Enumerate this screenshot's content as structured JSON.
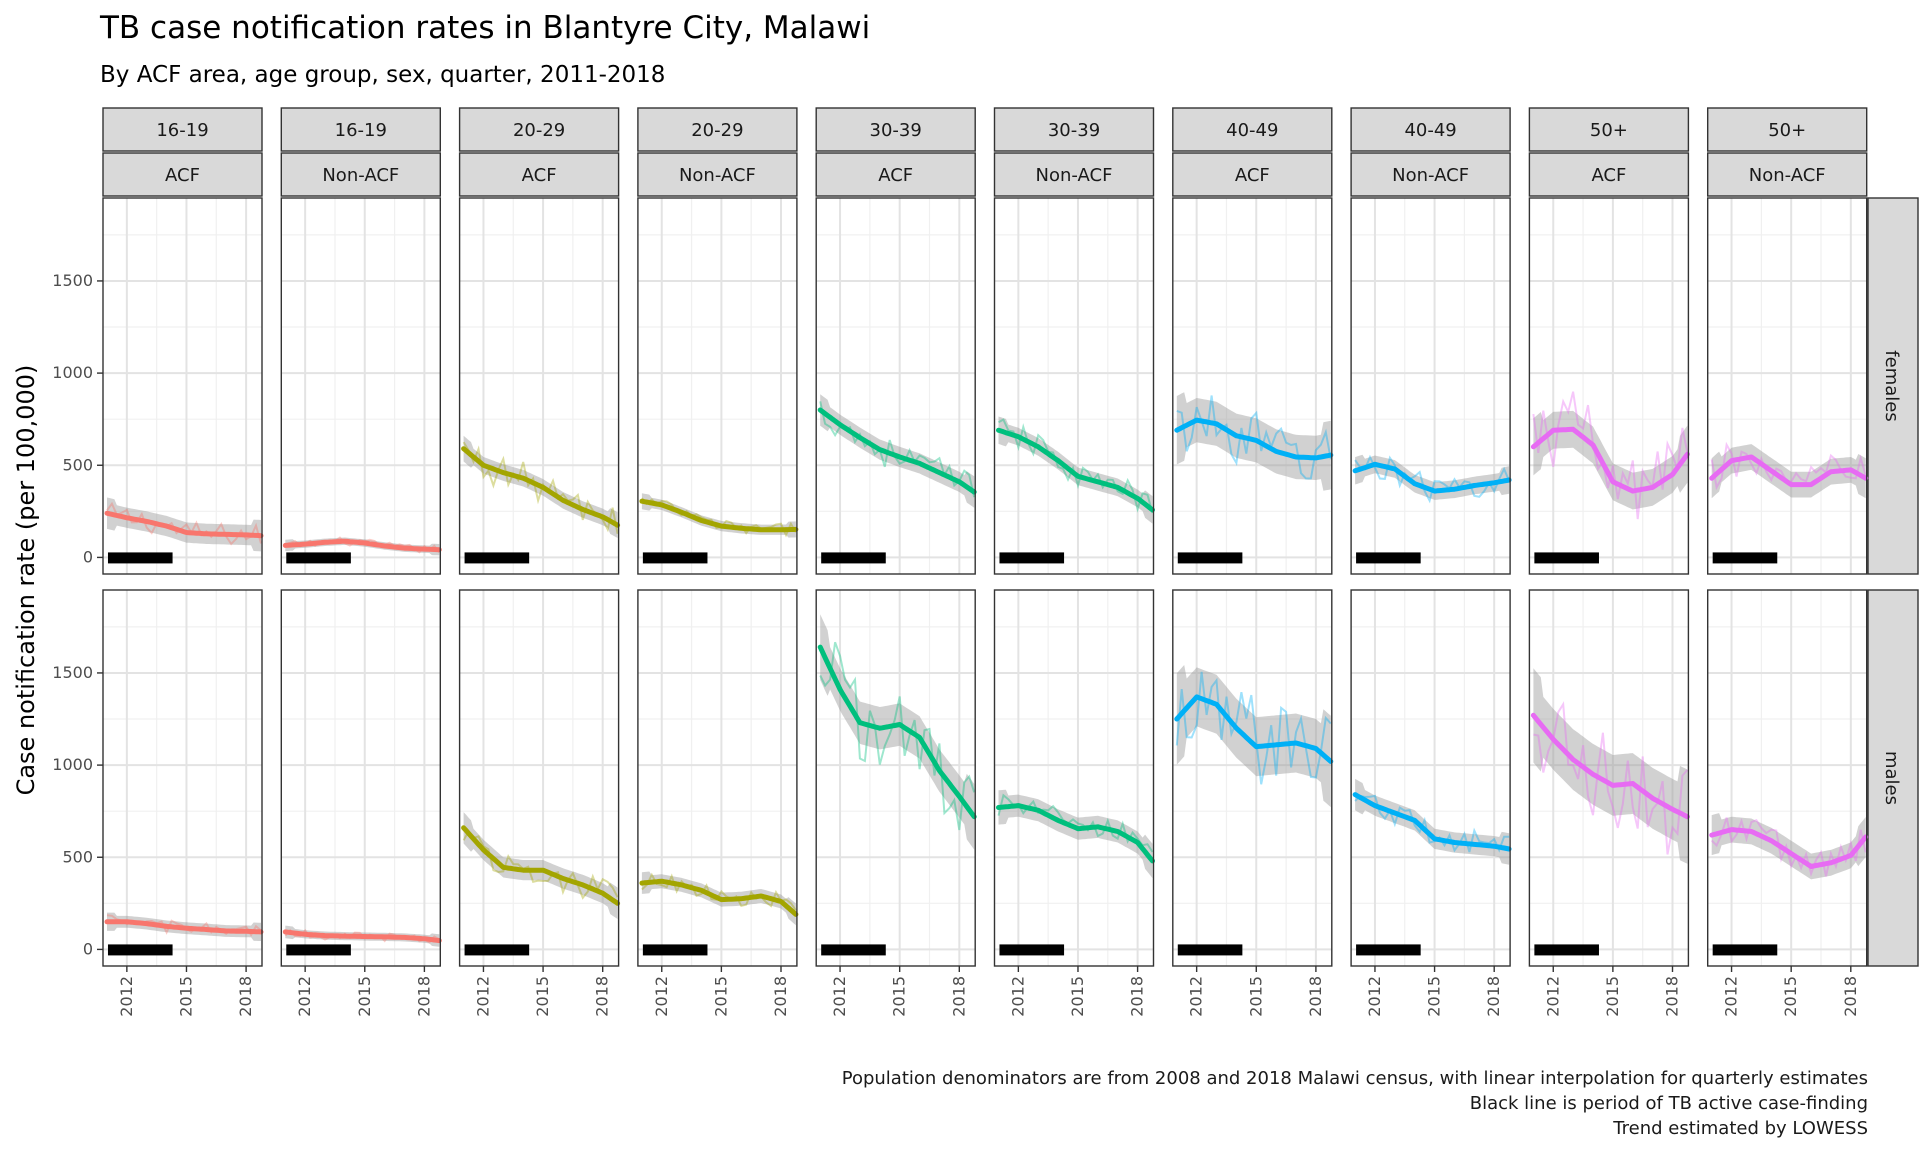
{
  "chart_data": {
    "type": "line",
    "title": "TB case notification rates in Blantyre City, Malawi",
    "subtitle": "By ACF area, age group, sex, quarter, 2011-2018",
    "ylabel": "Case notification rate (per 100,000)",
    "xlabel": "",
    "xlim": [
      2010.8,
      2018.8
    ],
    "ylim": [
      -90,
      1950
    ],
    "x_ticks": [
      2012,
      2015,
      2018
    ],
    "y_ticks": [
      0,
      500,
      1000,
      1500
    ],
    "grid": true,
    "legend": "none",
    "acf_period": [
      2011.0,
      2014.25
    ],
    "columns": [
      {
        "age": "16-19",
        "area": "ACF",
        "color": "#F8766D"
      },
      {
        "age": "16-19",
        "area": "Non-ACF",
        "color": "#F8766D"
      },
      {
        "age": "20-29",
        "area": "ACF",
        "color": "#A3A500"
      },
      {
        "age": "20-29",
        "area": "Non-ACF",
        "color": "#A3A500"
      },
      {
        "age": "30-39",
        "area": "ACF",
        "color": "#00BF7D"
      },
      {
        "age": "30-39",
        "area": "Non-ACF",
        "color": "#00BF7D"
      },
      {
        "age": "40-49",
        "area": "ACF",
        "color": "#00B0F6"
      },
      {
        "age": "40-49",
        "area": "Non-ACF",
        "color": "#00B0F6"
      },
      {
        "age": "50+",
        "area": "ACF",
        "color": "#E76BF3"
      },
      {
        "age": "50+",
        "area": "Non-ACF",
        "color": "#E76BF3"
      }
    ],
    "rows": [
      "females",
      "males"
    ],
    "trend_x": [
      2011.0,
      2012.0,
      2013.0,
      2014.0,
      2015.0,
      2016.0,
      2017.0,
      2018.0,
      2018.75
    ],
    "panels": [
      {
        "row": "females",
        "col": 0,
        "trend": [
          240,
          215,
          195,
          170,
          135,
          128,
          125,
          122,
          118
        ],
        "band": 55,
        "noise": 60
      },
      {
        "row": "females",
        "col": 1,
        "trend": [
          65,
          72,
          82,
          88,
          78,
          62,
          50,
          45,
          42
        ],
        "band": 20,
        "noise": 22
      },
      {
        "row": "females",
        "col": 2,
        "trend": [
          590,
          500,
          460,
          430,
          380,
          310,
          260,
          220,
          175
        ],
        "band": 45,
        "noise": 90
      },
      {
        "row": "females",
        "col": 3,
        "trend": [
          305,
          285,
          245,
          200,
          170,
          158,
          150,
          150,
          152
        ],
        "band": 28,
        "noise": 35
      },
      {
        "row": "females",
        "col": 4,
        "trend": [
          800,
          720,
          650,
          585,
          545,
          510,
          460,
          410,
          355
        ],
        "band": 55,
        "noise": 85
      },
      {
        "row": "females",
        "col": 5,
        "trend": [
          690,
          655,
          600,
          525,
          440,
          410,
          380,
          320,
          258
        ],
        "band": 48,
        "noise": 70
      },
      {
        "row": "females",
        "col": 6,
        "trend": [
          690,
          745,
          725,
          660,
          635,
          575,
          545,
          540,
          555
        ],
        "band": 120,
        "noise": 150
      },
      {
        "row": "females",
        "col": 7,
        "trend": [
          470,
          505,
          480,
          400,
          360,
          370,
          390,
          405,
          420
        ],
        "band": 48,
        "noise": 75
      },
      {
        "row": "females",
        "col": 8,
        "trend": [
          600,
          690,
          695,
          610,
          410,
          360,
          380,
          450,
          560
        ],
        "band": 100,
        "noise": 210
      },
      {
        "row": "females",
        "col": 9,
        "trend": [
          430,
          525,
          545,
          470,
          395,
          395,
          465,
          475,
          430
        ],
        "band": 70,
        "noise": 110
      },
      {
        "row": "males",
        "col": 0,
        "trend": [
          150,
          150,
          140,
          125,
          115,
          108,
          100,
          98,
          95
        ],
        "band": 32,
        "noise": 35
      },
      {
        "row": "males",
        "col": 1,
        "trend": [
          95,
          82,
          75,
          72,
          70,
          68,
          65,
          58,
          48
        ],
        "band": 22,
        "noise": 22
      },
      {
        "row": "males",
        "col": 2,
        "trend": [
          660,
          540,
          445,
          430,
          430,
          385,
          350,
          305,
          250
        ],
        "band": 55,
        "noise": 80
      },
      {
        "row": "males",
        "col": 3,
        "trend": [
          360,
          370,
          350,
          320,
          270,
          275,
          290,
          260,
          190
        ],
        "band": 38,
        "noise": 45
      },
      {
        "row": "males",
        "col": 4,
        "trend": [
          1640,
          1410,
          1230,
          1200,
          1220,
          1150,
          970,
          830,
          720
        ],
        "band": 115,
        "noise": 220
      },
      {
        "row": "males",
        "col": 5,
        "trend": [
          770,
          780,
          755,
          700,
          655,
          665,
          640,
          580,
          480
        ],
        "band": 60,
        "noise": 70
      },
      {
        "row": "males",
        "col": 6,
        "trend": [
          1250,
          1370,
          1330,
          1200,
          1100,
          1110,
          1120,
          1090,
          1020
        ],
        "band": 160,
        "noise": 260
      },
      {
        "row": "males",
        "col": 7,
        "trend": [
          840,
          780,
          740,
          700,
          600,
          580,
          570,
          560,
          545
        ],
        "band": 55,
        "noise": 75
      },
      {
        "row": "males",
        "col": 8,
        "trend": [
          1270,
          1140,
          1030,
          950,
          890,
          900,
          820,
          760,
          720
        ],
        "band": 165,
        "noise": 260
      },
      {
        "row": "males",
        "col": 9,
        "trend": [
          620,
          650,
          640,
          590,
          520,
          450,
          470,
          510,
          610
        ],
        "band": 70,
        "noise": 90
      }
    ],
    "caption": [
      "Population denominators are from 2008 and 2018 Malawi census, with linear interpolation for quarterly estimates",
      "Black line is period of TB active case-finding",
      "Trend estimated by LOWESS"
    ]
  }
}
